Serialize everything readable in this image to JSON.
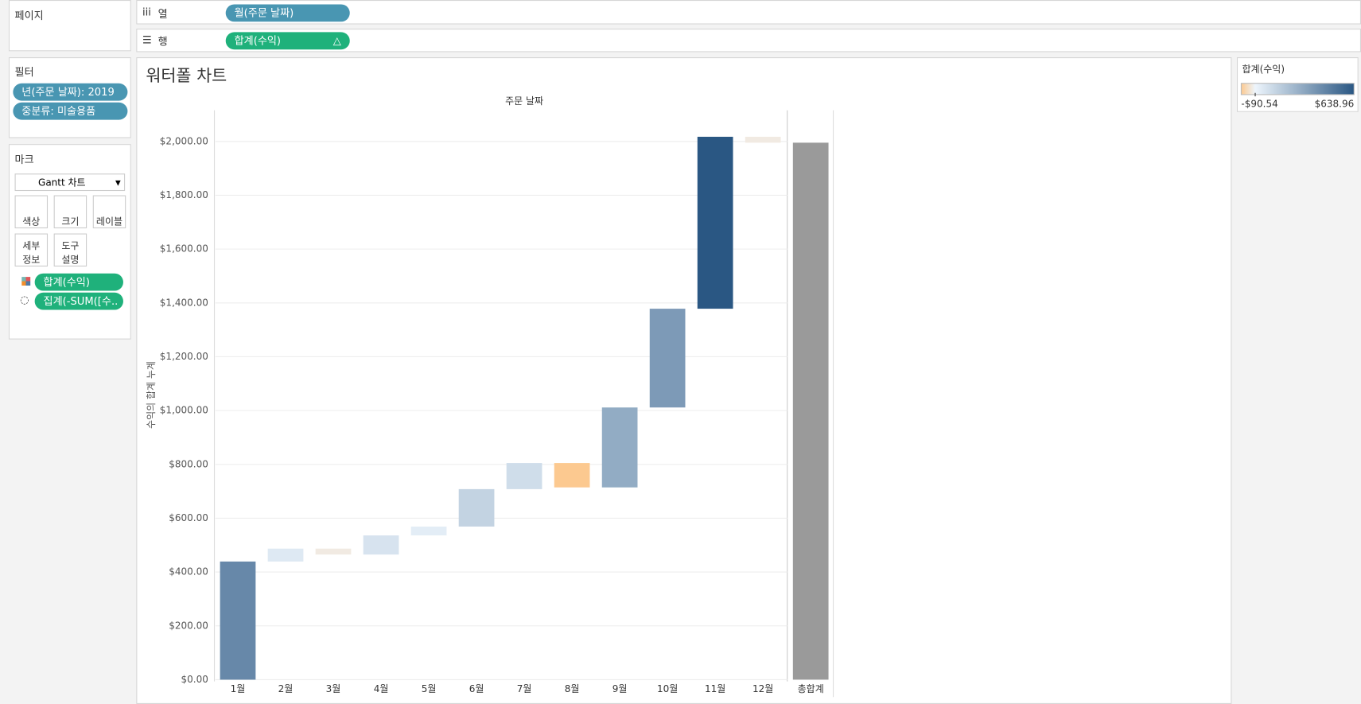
{
  "ui": {
    "pages": "페이지",
    "columns": {
      "label": "열",
      "pill": "월(주문 날짜)"
    },
    "rows": {
      "label": "행",
      "pill": "합계(수익)"
    },
    "filters": {
      "title": "필터",
      "items": [
        "년(주문 날짜): 2019",
        "중분류: 미술용품"
      ]
    },
    "marks": {
      "title": "마크",
      "mark_type": "Gantt 차트",
      "buttons": [
        [
          "색상"
        ],
        [
          "크기"
        ],
        [
          "레이블"
        ],
        [
          "세부",
          "정보"
        ],
        [
          "도구",
          "설명"
        ]
      ],
      "fields": [
        "합계(수익)",
        "집계(-SUM([수.."
      ]
    }
  },
  "chart_data": {
    "type": "waterfall",
    "title": "워터폴 차트",
    "x_label": "주문 날짜",
    "y_label": "수익의 합계 누계",
    "categories": [
      "1월",
      "2월",
      "3월",
      "4월",
      "5월",
      "6월",
      "7월",
      "8월",
      "9월",
      "10월",
      "11월",
      "12월"
    ],
    "values": [
      439,
      48,
      -22,
      71,
      33,
      139,
      97,
      -90.54,
      297,
      367,
      638.96,
      -22
    ],
    "total_label": "총합계",
    "total_color": "#9a9a9a",
    "ylim": [
      0,
      2116
    ],
    "yticks": [
      {
        "value": 0,
        "label": "$0.00"
      },
      {
        "value": 200,
        "label": "$200.00"
      },
      {
        "value": 400,
        "label": "$400.00"
      },
      {
        "value": 600,
        "label": "$600.00"
      },
      {
        "value": 800,
        "label": "$800.00"
      },
      {
        "value": 1000,
        "label": "$1,000.00"
      },
      {
        "value": 1200,
        "label": "$1,200.00"
      },
      {
        "value": 1400,
        "label": "$1,400.00"
      },
      {
        "value": 1600,
        "label": "$1,600.00"
      },
      {
        "value": 1800,
        "label": "$1,800.00"
      },
      {
        "value": 2000,
        "label": "$2,000.00"
      }
    ],
    "grid": true,
    "color_legend": {
      "title": "합계(수익)",
      "min": {
        "value": -90.54,
        "label": "-$90.54"
      },
      "max": {
        "value": 638.96,
        "label": "$638.96"
      },
      "colors": [
        "#fcc990",
        "#edf5fc",
        "#2a5783"
      ]
    }
  }
}
